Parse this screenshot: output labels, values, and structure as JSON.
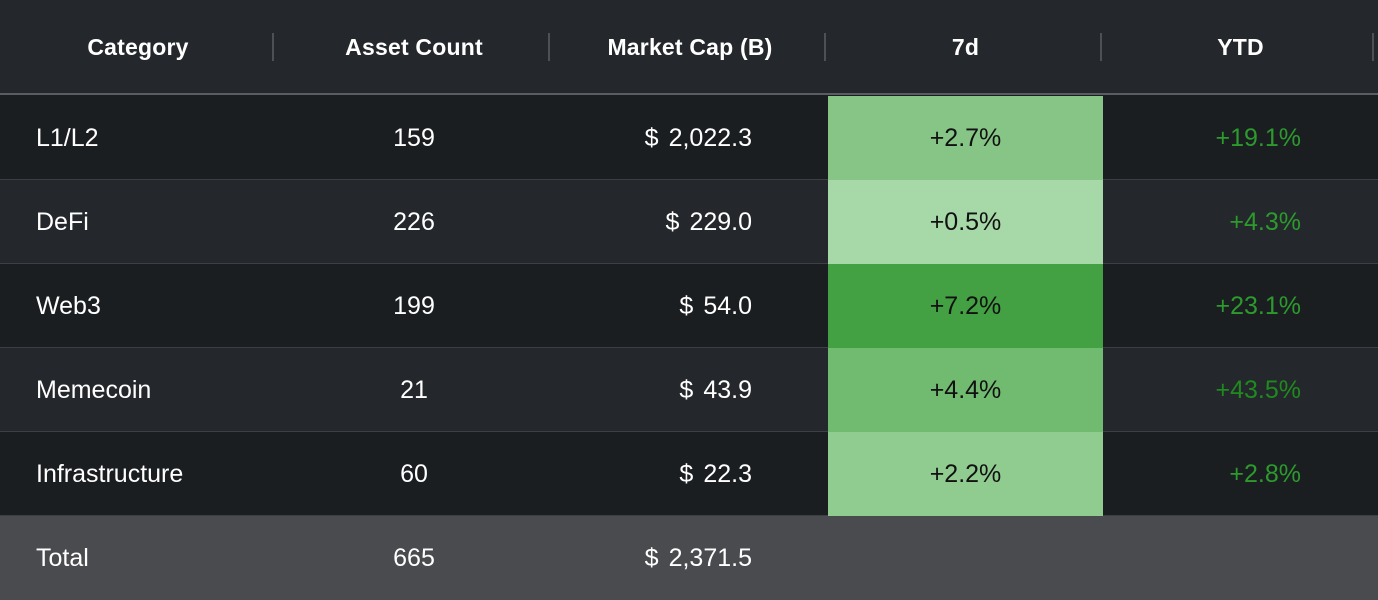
{
  "columns": {
    "category": "Category",
    "asset_count": "Asset Count",
    "market_cap": "Market Cap (B)",
    "d7": "7d",
    "ytd": "YTD"
  },
  "currency_symbol": "$",
  "rows": [
    {
      "category": "L1/L2",
      "asset_count": "159",
      "market_cap": "2,022.3",
      "d7": "+2.7%",
      "ytd": "+19.1%",
      "d7_color": "#86c586",
      "ytd_color": "#2c9a2c"
    },
    {
      "category": "DeFi",
      "asset_count": "226",
      "market_cap": "229.0",
      "d7": "+0.5%",
      "ytd": "+4.3%",
      "d7_color": "#a7d8a7",
      "ytd_color": "#2c9a2c"
    },
    {
      "category": "Web3",
      "asset_count": "199",
      "market_cap": "54.0",
      "d7": "+7.2%",
      "ytd": "+23.1%",
      "d7_color": "#43a043",
      "ytd_color": "#2c9a2c"
    },
    {
      "category": "Memecoin",
      "asset_count": "21",
      "market_cap": "43.9",
      "d7": "+4.4%",
      "ytd": "+43.5%",
      "d7_color": "#70bb70",
      "ytd_color": "#1f8a1f"
    },
    {
      "category": "Infrastructure",
      "asset_count": "60",
      "market_cap": "22.3",
      "d7": "+2.2%",
      "ytd": "+2.8%",
      "d7_color": "#90cb90",
      "ytd_color": "#2c9a2c"
    }
  ],
  "total": {
    "label": "Total",
    "asset_count": "665",
    "market_cap": "2,371.5"
  },
  "colors": {
    "header_bg": "#24272b",
    "row_odd_bg": "#1b1e21",
    "row_even_bg": "#24272b",
    "total_bg": "#4a4b4f"
  }
}
